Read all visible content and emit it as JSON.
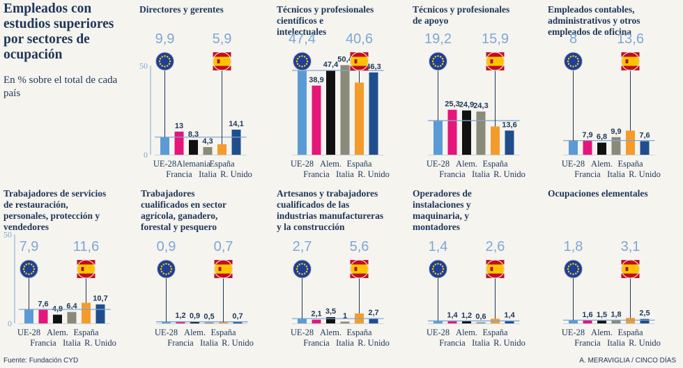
{
  "title": "Empleados con estudios superiores por sectores de ocupación",
  "subtitle": "En % sobre el total de cada país",
  "source": "Fuente: Fundación CYD",
  "credit": "A. MERAVIGLIA / CINCO DÍAS",
  "colors": {
    "UE-28": "#5b9bd5",
    "Francia": "#e5157a",
    "Alemania": "#111111",
    "Italia": "#8a8a78",
    "España": "#f39c2b",
    "R. Unido": "#1f4e8c",
    "reference_line": "#7ea6d6"
  },
  "icons": {
    "eu": "eu-flag-icon",
    "es": "spain-flag-icon"
  },
  "chart_data": [
    {
      "type": "bar",
      "title": "Directores y gerentes",
      "categories": [
        "UE-28",
        "Francia",
        "Alemania",
        "Italia",
        "España",
        "R. Unido"
      ],
      "xlabels": [
        "UE-28",
        "Francia",
        "Alemania",
        "Italia",
        "España",
        "R. Unido"
      ],
      "values": [
        9.9,
        13,
        8.3,
        4.3,
        5.9,
        14.1
      ],
      "labels": [
        "",
        "13",
        "8,3",
        "4,3",
        "",
        "14,1"
      ],
      "eu_value": "9,9",
      "es_value": "5,9",
      "yticks": [
        "50",
        "0"
      ],
      "ylim": [
        0,
        50
      ]
    },
    {
      "type": "bar",
      "title": "Técnicos y profesionales científicos e intelectuales",
      "categories": [
        "UE-28",
        "Francia",
        "Alemania",
        "Italia",
        "España",
        "R. Unido"
      ],
      "xlabels": [
        "UE-28",
        "Francia",
        "Alem.",
        "Italia",
        "España",
        "R. Unido"
      ],
      "values": [
        47.4,
        38.9,
        47.4,
        50.4,
        40.6,
        46.3
      ],
      "labels": [
        "",
        "38,9",
        "47,4",
        "50,4",
        "",
        "46,3"
      ],
      "eu_value": "47,4",
      "es_value": "40,6",
      "yticks": [],
      "ylim": [
        0,
        50
      ]
    },
    {
      "type": "bar",
      "title": "Técnicos y profesionales de apoyo",
      "categories": [
        "UE-28",
        "Francia",
        "Alemania",
        "Italia",
        "España",
        "R. Unido"
      ],
      "xlabels": [
        "UE-28",
        "Francia",
        "Alem.",
        "Italia",
        "España",
        "R. Unido"
      ],
      "values": [
        19.2,
        25.3,
        24.9,
        24.3,
        15.9,
        13.6
      ],
      "labels": [
        "",
        "25,3",
        "24,9",
        "24,3",
        "",
        "13,6"
      ],
      "eu_value": "19,2",
      "es_value": "15,9",
      "yticks": [],
      "ylim": [
        0,
        50
      ]
    },
    {
      "type": "bar",
      "title": "Empleados contables, administrativos y otros empleados de oficina",
      "categories": [
        "UE-28",
        "Francia",
        "Alemania",
        "Italia",
        "España",
        "R. Unido"
      ],
      "xlabels": [
        "UE-28",
        "Francia",
        "Alem.",
        "Italia",
        "España",
        "R. Unido"
      ],
      "values": [
        8,
        7.9,
        6.8,
        9.9,
        13.6,
        7.6
      ],
      "labels": [
        "",
        "7,9",
        "6,8",
        "9,9",
        "",
        "7,6"
      ],
      "eu_value": "8",
      "es_value": "13,6",
      "yticks": [],
      "ylim": [
        0,
        50
      ]
    },
    {
      "type": "bar",
      "title": "Trabajadores de servicios de restauración, personales, protección y vendedores",
      "categories": [
        "UE-28",
        "Francia",
        "Alemania",
        "Italia",
        "España",
        "R. Unido"
      ],
      "xlabels": [
        "UE-28",
        "Francia",
        "Alem.",
        "Italia",
        "España",
        "R. Unido"
      ],
      "values": [
        7.9,
        7.6,
        4.9,
        6.4,
        11.6,
        10.7
      ],
      "labels": [
        "",
        "7,6",
        "4,9",
        "6,4",
        "",
        "10,7"
      ],
      "eu_value": "7,9",
      "es_value": "11,6",
      "yticks": [
        "50",
        "0"
      ],
      "ylim": [
        0,
        50
      ]
    },
    {
      "type": "bar",
      "title": "Trabajadores cualificados en sector agrícola, ganadero, forestal y pesquero",
      "categories": [
        "UE-28",
        "Francia",
        "Alemania",
        "Italia",
        "España",
        "R. Unido"
      ],
      "xlabels": [
        "UE-28",
        "Francia",
        "Alem.",
        "Italia",
        "España",
        "R. Unido"
      ],
      "values": [
        0.9,
        1.2,
        0.9,
        0.5,
        0.7,
        0.7
      ],
      "labels": [
        "",
        "1,2",
        "0,9",
        "0,5",
        "",
        "0,7"
      ],
      "eu_value": "0,9",
      "es_value": "0,7",
      "yticks": [],
      "ylim": [
        0,
        50
      ]
    },
    {
      "type": "bar",
      "title": "Artesanos y trabajadores cualificados de las industrias manufactureras y la construcción",
      "categories": [
        "UE-28",
        "Francia",
        "Alemania",
        "Italia",
        "España",
        "R. Unido"
      ],
      "xlabels": [
        "UE-28",
        "Francia",
        "Alem.",
        "Italia",
        "España",
        "R. Unido"
      ],
      "values": [
        2.7,
        2.1,
        3.5,
        1,
        5.6,
        2.7
      ],
      "labels": [
        "",
        "2,1",
        "3,5",
        "1",
        "",
        "2,7"
      ],
      "eu_value": "2,7",
      "es_value": "5,6",
      "yticks": [],
      "ylim": [
        0,
        50
      ]
    },
    {
      "type": "bar",
      "title": "Operadores de instalaciones y maquinaria, y montadores",
      "categories": [
        "UE-28",
        "Francia",
        "Alemania",
        "Italia",
        "España",
        "R. Unido"
      ],
      "xlabels": [
        "UE-28",
        "Francia",
        "Alem.",
        "Italia",
        "España",
        "R. Unido"
      ],
      "values": [
        1.4,
        1.4,
        1.2,
        0.6,
        2.6,
        1.4
      ],
      "labels": [
        "",
        "1,4",
        "1,2",
        "0,6",
        "",
        "1,4"
      ],
      "eu_value": "1,4",
      "es_value": "2,6",
      "yticks": [],
      "ylim": [
        0,
        50
      ]
    },
    {
      "type": "bar",
      "title": "Ocupaciones elementales",
      "categories": [
        "UE-28",
        "Francia",
        "Alemania",
        "Italia",
        "España",
        "R. Unido"
      ],
      "xlabels": [
        "UE-28",
        "Francia",
        "Alem.",
        "Italia",
        "España",
        "R. Unido"
      ],
      "values": [
        1.8,
        1.6,
        1.5,
        1.8,
        3.1,
        2.5
      ],
      "labels": [
        "",
        "1,6",
        "1,5",
        "1,8",
        "",
        "2,5"
      ],
      "eu_value": "1,8",
      "es_value": "3,1",
      "yticks": [],
      "ylim": [
        0,
        50
      ]
    }
  ]
}
